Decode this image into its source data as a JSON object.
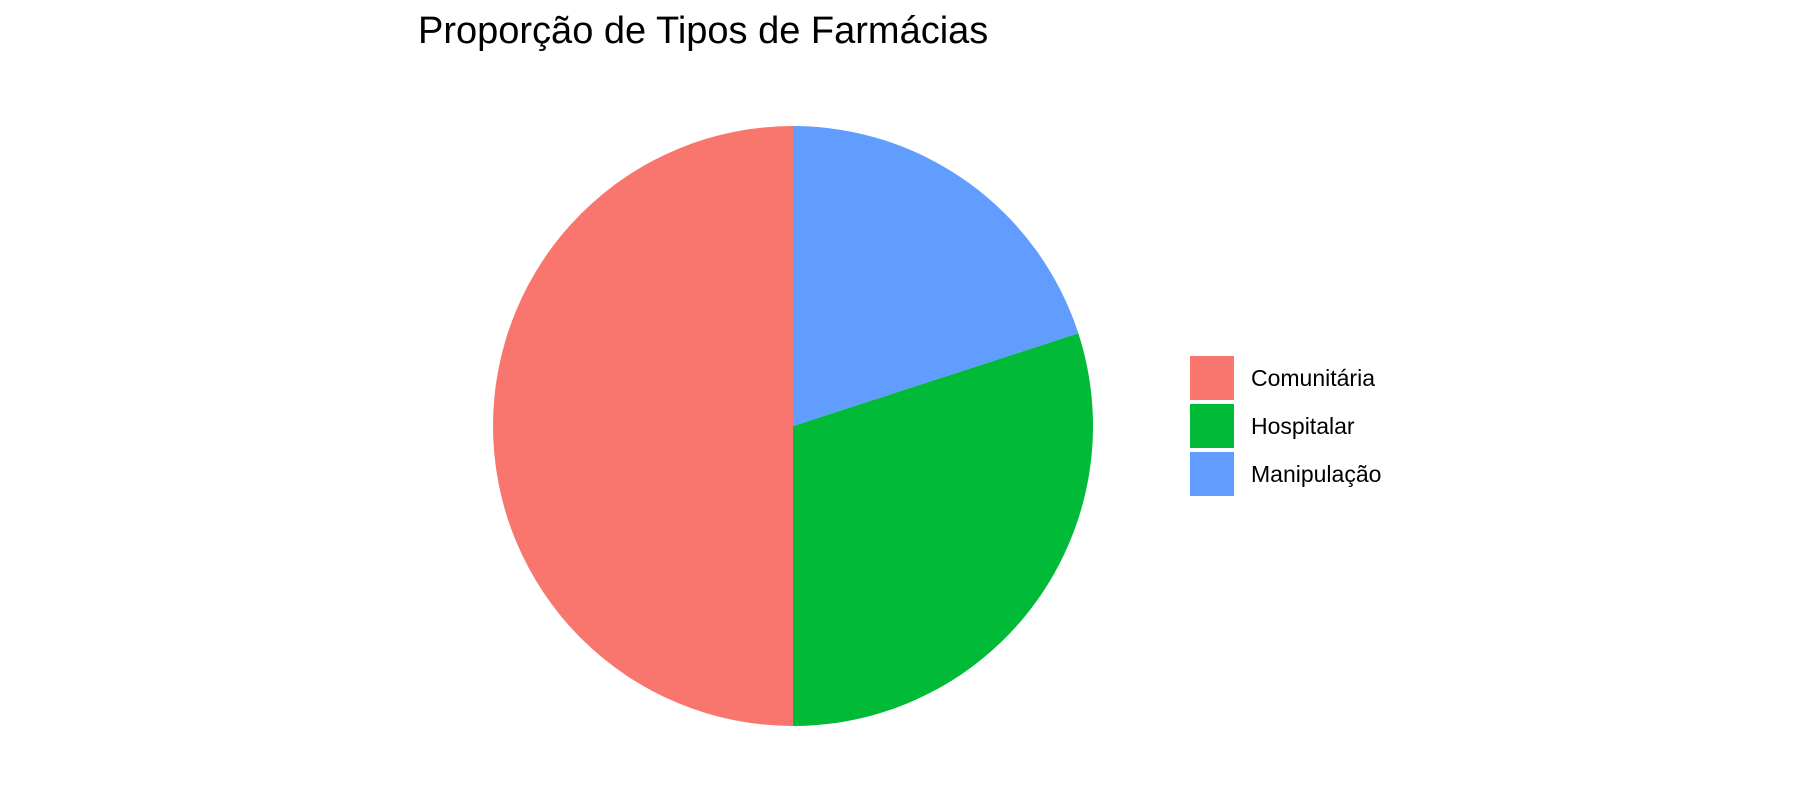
{
  "chart_data": {
    "type": "pie",
    "title": "Proporção de Tipos de Farmácias",
    "categories": [
      "Comunitária",
      "Hospitalar",
      "Manipulação"
    ],
    "values": [
      50,
      30,
      20
    ],
    "colors": [
      "#F8766D",
      "#00BA38",
      "#619CFF"
    ],
    "start": "12 o'clock",
    "direction": "counterclockwise",
    "legend_position": "right",
    "grid": false
  }
}
